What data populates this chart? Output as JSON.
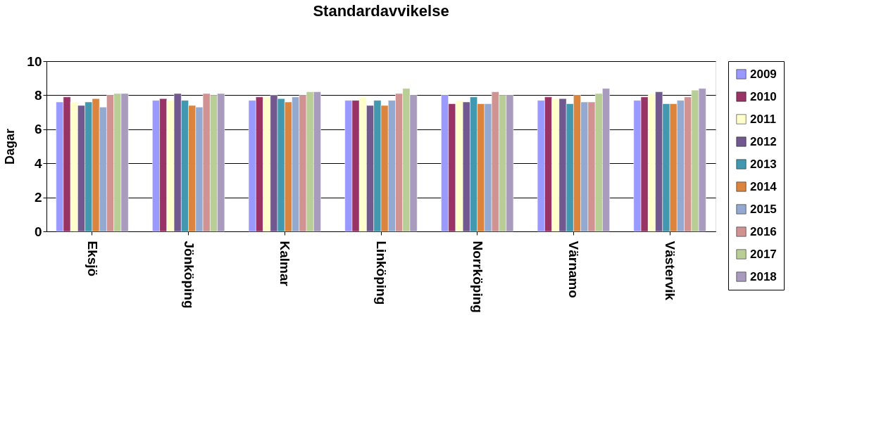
{
  "chart_data": {
    "type": "bar",
    "title": "Standardavvikelse",
    "ylabel": "Dagar",
    "categories": [
      "Eksjö",
      "Jönköping",
      "Kalmar",
      "Linköping",
      "Norrköping",
      "Värnamo",
      "Västervik"
    ],
    "ylim": [
      0,
      10
    ],
    "yticks": [
      0,
      2,
      4,
      6,
      8,
      10
    ],
    "grid": "y",
    "legend": "right",
    "series": [
      {
        "name": "2009",
        "color": "#9999ff",
        "values": [
          7.6,
          7.7,
          7.7,
          7.7,
          8.0,
          7.7,
          7.7
        ]
      },
      {
        "name": "2010",
        "color": "#993366",
        "values": [
          7.9,
          7.8,
          7.9,
          7.7,
          7.5,
          7.9,
          7.9
        ]
      },
      {
        "name": "2011",
        "color": "#ffffcc",
        "values": [
          7.6,
          7.7,
          7.9,
          7.9,
          7.7,
          7.8,
          8.1
        ]
      },
      {
        "name": "2012",
        "color": "#71588f",
        "values": [
          7.4,
          8.1,
          8.0,
          7.4,
          7.6,
          7.8,
          8.2
        ]
      },
      {
        "name": "2013",
        "color": "#4198af",
        "values": [
          7.6,
          7.7,
          7.8,
          7.7,
          7.9,
          7.5,
          7.5
        ]
      },
      {
        "name": "2014",
        "color": "#db843d",
        "values": [
          7.8,
          7.4,
          7.6,
          7.4,
          7.5,
          8.0,
          7.5
        ]
      },
      {
        "name": "2015",
        "color": "#93a9cf",
        "values": [
          7.3,
          7.3,
          7.9,
          7.7,
          7.5,
          7.6,
          7.7
        ]
      },
      {
        "name": "2016",
        "color": "#d19392",
        "values": [
          8.0,
          8.1,
          8.0,
          8.1,
          8.2,
          7.6,
          7.9
        ]
      },
      {
        "name": "2017",
        "color": "#b9cd96",
        "values": [
          8.1,
          8.0,
          8.2,
          8.4,
          8.0,
          8.1,
          8.3
        ]
      },
      {
        "name": "2018",
        "color": "#a99bbd",
        "values": [
          8.1,
          8.1,
          8.2,
          8.0,
          8.0,
          8.4,
          8.4
        ]
      }
    ]
  }
}
